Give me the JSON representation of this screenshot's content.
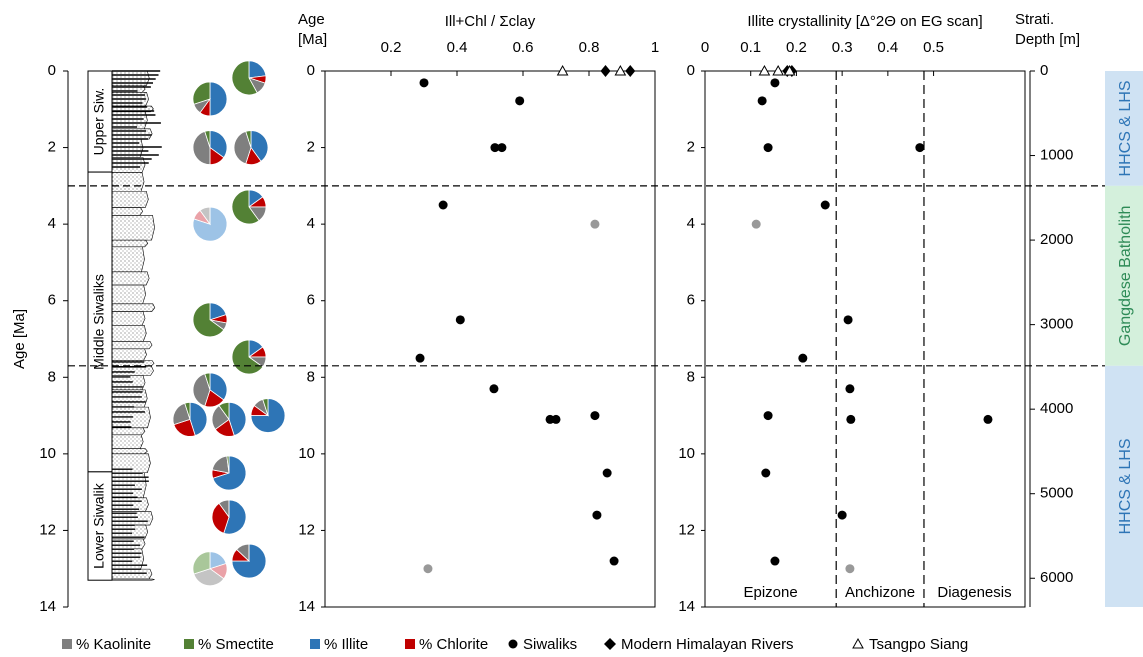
{
  "chart_data": [
    {
      "type": "pie-log",
      "ylabel": "Age [Ma]",
      "ylim": [
        0,
        14
      ],
      "yticks": [
        0,
        2,
        4,
        6,
        8,
        10,
        12,
        14
      ],
      "y_inverted": true,
      "formations": [
        {
          "label": "Upper Siw.",
          "top": 0,
          "base": 2.64
        },
        {
          "label": "Middle Siwaliks",
          "top": 2.64,
          "base": 10.47
        },
        {
          "label": "Lower Siwalik",
          "top": 10.47,
          "base": 13.3
        }
      ],
      "components": [
        {
          "name": "% Kaolinite",
          "color": "#7f7f7f",
          "faded_color": "#c4c4c4"
        },
        {
          "name": "% Smectite",
          "color": "#538135",
          "faded_color": "#a9c79a"
        },
        {
          "name": "% Illite",
          "color": "#2e75b6",
          "faded_color": "#9dc3e6"
        },
        {
          "name": "% Chlorite",
          "color": "#c00000",
          "faded_color": "#eaa2a8"
        }
      ],
      "pies": [
        {
          "age": 0.18,
          "values": [
            12,
            58,
            23,
            7
          ],
          "faded": false
        },
        {
          "age": 0.73,
          "values": [
            10,
            30,
            50,
            10
          ],
          "faded": false
        },
        {
          "age": 2.0,
          "values": [
            45,
            5,
            35,
            15
          ],
          "faded": false
        },
        {
          "age": 2.0,
          "values": [
            40,
            5,
            40,
            15
          ],
          "faded": false
        },
        {
          "age": 3.55,
          "values": [
            15,
            60,
            15,
            10
          ],
          "faded": false
        },
        {
          "age": 4.0,
          "values": [
            10,
            0,
            80,
            10
          ],
          "faded": true
        },
        {
          "age": 6.5,
          "values": [
            7,
            65,
            20,
            8
          ],
          "faded": false
        },
        {
          "age": 7.47,
          "values": [
            10,
            65,
            15,
            10
          ],
          "faded": false
        },
        {
          "age": 8.33,
          "values": [
            40,
            5,
            35,
            20
          ],
          "faded": false
        },
        {
          "age": 9.1,
          "values": [
            25,
            5,
            45,
            25
          ],
          "faded": false
        },
        {
          "age": 9.1,
          "values": [
            25,
            10,
            45,
            20
          ],
          "faded": false
        },
        {
          "age": 9.0,
          "values": [
            10,
            5,
            75,
            10
          ],
          "faded": false
        },
        {
          "age": 10.5,
          "values": [
            20,
            2,
            70,
            8
          ],
          "faded": false
        },
        {
          "age": 11.65,
          "values": [
            10,
            0,
            55,
            35
          ],
          "faded": false
        },
        {
          "age": 12.8,
          "values": [
            13,
            0,
            75,
            12
          ],
          "faded": false
        },
        {
          "age": 13.0,
          "values": [
            35,
            30,
            20,
            15
          ],
          "faded": true
        }
      ]
    },
    {
      "type": "scatter",
      "title": "Ill+Chl / Σclay",
      "ylabel": [
        "Age",
        "[Ma]"
      ],
      "xlim": [
        0,
        1
      ],
      "xticks": [
        0.2,
        0.4,
        0.6,
        0.8,
        1
      ],
      "ylim": [
        0,
        14
      ],
      "yticks": [
        0,
        2,
        4,
        6,
        8,
        10,
        12,
        14
      ],
      "y_inverted": true,
      "series": [
        {
          "name": "Siwaliks",
          "marker": "circle",
          "color": "#000000",
          "point_colors": [
            "#000000",
            "#000000",
            "#000000",
            "#000000",
            "#000000",
            "#999999",
            "#000000",
            "#000000",
            "#000000",
            "#000000",
            "#000000",
            "#000000",
            "#000000",
            "#000000",
            "#000000",
            "#999999"
          ],
          "x": [
            0.3,
            0.59,
            0.515,
            0.536,
            0.358,
            0.818,
            0.41,
            0.288,
            0.512,
            0.682,
            0.7,
            0.818,
            0.855,
            0.824,
            0.876,
            0.312
          ],
          "y": [
            0.31,
            0.78,
            2.0,
            2.0,
            3.5,
            4.0,
            6.5,
            7.5,
            8.3,
            9.1,
            9.1,
            9.0,
            10.5,
            11.6,
            12.8,
            13.0
          ]
        },
        {
          "name": "Modern Himalayan Rivers",
          "marker": "diamond",
          "color": "#000000",
          "x": [
            0.85,
            0.925
          ],
          "y": [
            0,
            0
          ]
        },
        {
          "name": "Tsangpo Siang",
          "marker": "triangle",
          "color": "#000000",
          "x": [
            0.72,
            0.895
          ],
          "y": [
            0,
            0
          ]
        }
      ]
    },
    {
      "type": "scatter",
      "title": "Illite crystallinity [Δ°2Θ on EG scan]",
      "xlim": [
        0,
        0.7
      ],
      "xticks": [
        0,
        0.1,
        0.2,
        0.3,
        0.4,
        0.5
      ],
      "ylim": [
        0,
        14
      ],
      "yticks": [
        0,
        2,
        4,
        6,
        8,
        10,
        12,
        14
      ],
      "y_inverted": true,
      "y2label": [
        "Strati.",
        "Depth [m]"
      ],
      "y2lim": [
        0,
        6340
      ],
      "y2ticks": [
        0,
        1000,
        2000,
        3000,
        4000,
        5000,
        6000
      ],
      "zone_boundaries": [
        0.287,
        0.479
      ],
      "zones": [
        "Epizone",
        "Anchizone",
        "Diagenesis"
      ],
      "series": [
        {
          "name": "Siwaliks",
          "marker": "circle",
          "color": "#000000",
          "point_colors": [
            "#000000",
            "#000000",
            "#000000",
            "#000000",
            "#000000",
            "#999999",
            "#000000",
            "#000000",
            "#000000",
            "#000000",
            "#000000",
            "#000000",
            "#000000",
            "#000000",
            "#000000",
            "#999999"
          ],
          "x": [
            0.153,
            0.125,
            0.138,
            0.47,
            0.263,
            0.112,
            0.313,
            0.214,
            0.317,
            0.138,
            0.319,
            0.619,
            0.133,
            0.3,
            0.153,
            0.317
          ],
          "y": [
            0.31,
            0.78,
            2.0,
            2.0,
            3.5,
            4.0,
            6.5,
            7.5,
            8.3,
            9.0,
            9.1,
            9.1,
            10.5,
            11.6,
            12.8,
            13.0
          ]
        },
        {
          "name": "Modern Himalayan Rivers",
          "marker": "diamond",
          "color": "#000000",
          "x": [
            0.18,
            0.19
          ],
          "y": [
            0,
            0
          ]
        },
        {
          "name": "Tsangpo Siang",
          "marker": "triangle",
          "color": "#000000",
          "x": [
            0.13,
            0.16,
            0.185
          ],
          "y": [
            0,
            0,
            0
          ]
        }
      ],
      "boundaries_age": [
        3.0,
        7.7
      ],
      "provenance": [
        {
          "label": "HHCS & LHS",
          "top": 0,
          "base": 3.0,
          "color": "#cfe2f3",
          "text_color": "#2e75b6"
        },
        {
          "label": "Gangdese Batholith",
          "top": 3.0,
          "base": 7.7,
          "color": "#d4f0dc",
          "text_color": "#2e8b57"
        },
        {
          "label": "HHCS & LHS",
          "top": 7.7,
          "base": 14,
          "color": "#cfe2f3",
          "text_color": "#2e75b6"
        }
      ]
    }
  ]
}
